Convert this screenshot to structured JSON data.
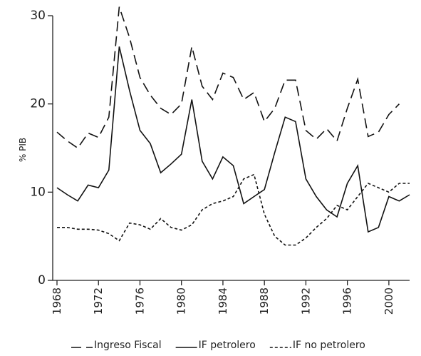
{
  "chart_data": {
    "type": "line",
    "y_label": "% PIB",
    "x": [
      1968,
      1969,
      1970,
      1971,
      1972,
      1973,
      1974,
      1975,
      1976,
      1977,
      1978,
      1979,
      1980,
      1981,
      1982,
      1983,
      1984,
      1985,
      1986,
      1987,
      1988,
      1989,
      1990,
      1991,
      1992,
      1993,
      1994,
      1995,
      1996,
      1997,
      1998,
      1999,
      2000,
      2001,
      2002
    ],
    "xlim": [
      1968,
      2002
    ],
    "xticks": [
      1968,
      1972,
      1976,
      1980,
      1984,
      1988,
      1992,
      1996,
      2000
    ],
    "ylim": [
      0,
      30
    ],
    "yticks": [
      0,
      10,
      20,
      30
    ],
    "series": [
      {
        "name": "Ingreso Fiscal",
        "color": "#111111",
        "style": "dashed",
        "values": [
          16.8,
          15.8,
          15.0,
          16.7,
          16.2,
          18.5,
          31.0,
          27.5,
          23.0,
          21.0,
          19.5,
          18.8,
          20.0,
          26.5,
          22.0,
          20.5,
          23.5,
          23.0,
          20.5,
          21.3,
          18.0,
          19.5,
          22.7,
          22.7,
          17.0,
          16.0,
          17.2,
          15.8,
          19.5,
          22.8,
          16.3,
          16.8,
          18.8,
          20.0,
          null
        ]
      },
      {
        "name": "IF petrolero",
        "color": "#111111",
        "style": "solid",
        "values": [
          10.5,
          9.7,
          9.0,
          10.8,
          10.5,
          12.5,
          26.5,
          21.5,
          17.0,
          15.5,
          12.2,
          13.2,
          14.3,
          20.5,
          13.5,
          11.5,
          14.0,
          13.0,
          8.7,
          9.5,
          10.3,
          14.5,
          18.5,
          18.0,
          11.5,
          9.5,
          8.0,
          7.2,
          11.0,
          13.0,
          5.5,
          6.0,
          9.5,
          9.0,
          9.7
        ]
      },
      {
        "name": "IF no petrolero",
        "color": "#111111",
        "style": "dotted",
        "values": [
          6.0,
          6.0,
          5.8,
          5.8,
          5.7,
          5.3,
          4.5,
          6.5,
          6.3,
          5.8,
          7.0,
          6.0,
          5.7,
          6.3,
          8.0,
          8.7,
          9.0,
          9.5,
          11.5,
          12.0,
          7.5,
          5.0,
          4.0,
          4.0,
          4.8,
          6.0,
          7.0,
          8.5,
          8.0,
          9.5,
          11.0,
          10.5,
          10.0,
          11.0,
          11.0
        ]
      }
    ]
  }
}
